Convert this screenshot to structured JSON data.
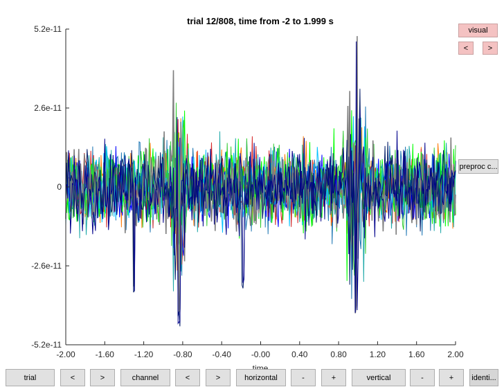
{
  "plot": {
    "title": "trial 12/808, time from -2 to 1.999 s",
    "xlabel": "time",
    "y_ticks": [
      "5.2e-11",
      "2.6e-11",
      "0",
      "-2.6e-11",
      "-5.2e-11"
    ],
    "x_ticks": [
      "-2.00",
      "-1.60",
      "-1.20",
      "-0.80",
      "-0.40",
      "-0.00",
      "0.40",
      "0.80",
      "1.20",
      "1.60",
      "2.00"
    ]
  },
  "chart_data": {
    "type": "line",
    "title": "trial 12/808, time from -2 to 1.999 s",
    "xlabel": "time",
    "ylabel": "",
    "xlim": [
      -2.0,
      2.0
    ],
    "ylim": [
      -5.2e-11,
      5.2e-11
    ],
    "series_colors": [
      "#1f77b4",
      "#ff7f0e",
      "#d62728",
      "#0000ff",
      "#00ff00",
      "#00bfff",
      "#1fa9a9",
      "#33cc33",
      "#7f7f7f",
      "#001a66",
      "#00008b"
    ],
    "notable_peaks": [
      {
        "x": -0.84,
        "y": 4.2e-11
      },
      {
        "x": -0.84,
        "y": -4.6e-11
      },
      {
        "x": 0.98,
        "y": 5.1e-11
      },
      {
        "x": 0.98,
        "y": -4.2e-11
      },
      {
        "x": -1.3,
        "y": -3.6e-11
      },
      {
        "x": -0.18,
        "y": -3.4e-11
      }
    ]
  },
  "right_panel": {
    "visual_label": "visual",
    "prev_label": "<",
    "next_label": ">",
    "preproc_label": "preproc c..."
  },
  "bottom_bar": {
    "trial_label": "trial",
    "trial_prev": "<",
    "trial_next": ">",
    "channel_label": "channel",
    "channel_prev": "<",
    "channel_next": ">",
    "horizontal_label": "horizontal",
    "horizontal_minus": "-",
    "horizontal_plus": "+",
    "vertical_label": "vertical",
    "vertical_minus": "-",
    "vertical_plus": "+",
    "identify_label": "identi..."
  }
}
